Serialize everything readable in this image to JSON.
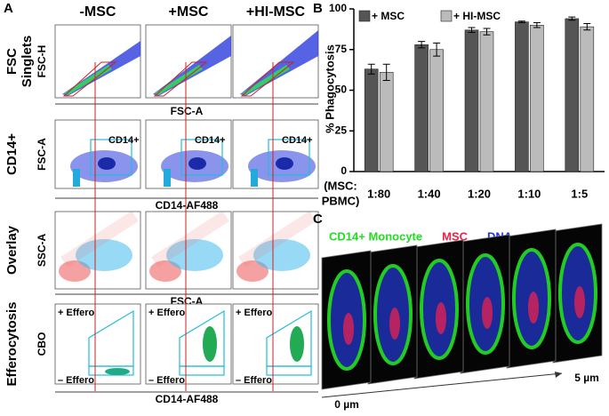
{
  "panels": {
    "a": {
      "label": "A",
      "columns": [
        "-MSC",
        "+MSC",
        "+HI-MSC"
      ],
      "rows": [
        {
          "title": [
            "FSC",
            "Singlets"
          ],
          "y_axis": "FSC-H",
          "x_axis": "FSC-A"
        },
        {
          "title": [
            "CD14+"
          ],
          "y_axis": "FSC-A",
          "x_axis": "CD14-AF488",
          "gate": "CD14+"
        },
        {
          "title": [
            "Overlay"
          ],
          "y_axis": "SSC-A",
          "x_axis": "FSC-A"
        },
        {
          "title": [
            "Efferocytosis"
          ],
          "y_axis": "CBO",
          "x_axis": "CD14-AF488",
          "gate_high": "+ Effero",
          "gate_low": "– Effero"
        }
      ]
    },
    "b": {
      "label": "B"
    },
    "c": {
      "label": "C",
      "stains": [
        {
          "text": "CD14+ Monocyte",
          "color": "#22dd22"
        },
        {
          "text": "MSC",
          "color": "#ee2244"
        },
        {
          "text": "DNA",
          "color": "#2233ee"
        }
      ],
      "depth_start": "0 µm",
      "depth_end": "5 µm"
    }
  },
  "chart_data": {
    "type": "bar",
    "ylabel": "% Phagocytosis",
    "xlabel": [
      "(MSC:",
      "PBMC)"
    ],
    "categories": [
      "1:80",
      "1:40",
      "1:20",
      "1:10",
      "1:5"
    ],
    "series": [
      {
        "name": "+ MSC",
        "color": "#555555",
        "values": [
          63,
          78,
          87,
          92,
          94
        ],
        "errors": [
          3,
          2,
          1.5,
          0.5,
          1
        ]
      },
      {
        "name": "+ HI-MSC",
        "color": "#bbbbbb",
        "values": [
          61,
          75,
          86,
          90,
          89
        ],
        "errors": [
          5,
          4,
          2,
          1.5,
          2
        ]
      }
    ],
    "ylim": [
      0,
      100
    ],
    "yticks": [
      0,
      25,
      50,
      75,
      100
    ],
    "legend": "upper left"
  }
}
